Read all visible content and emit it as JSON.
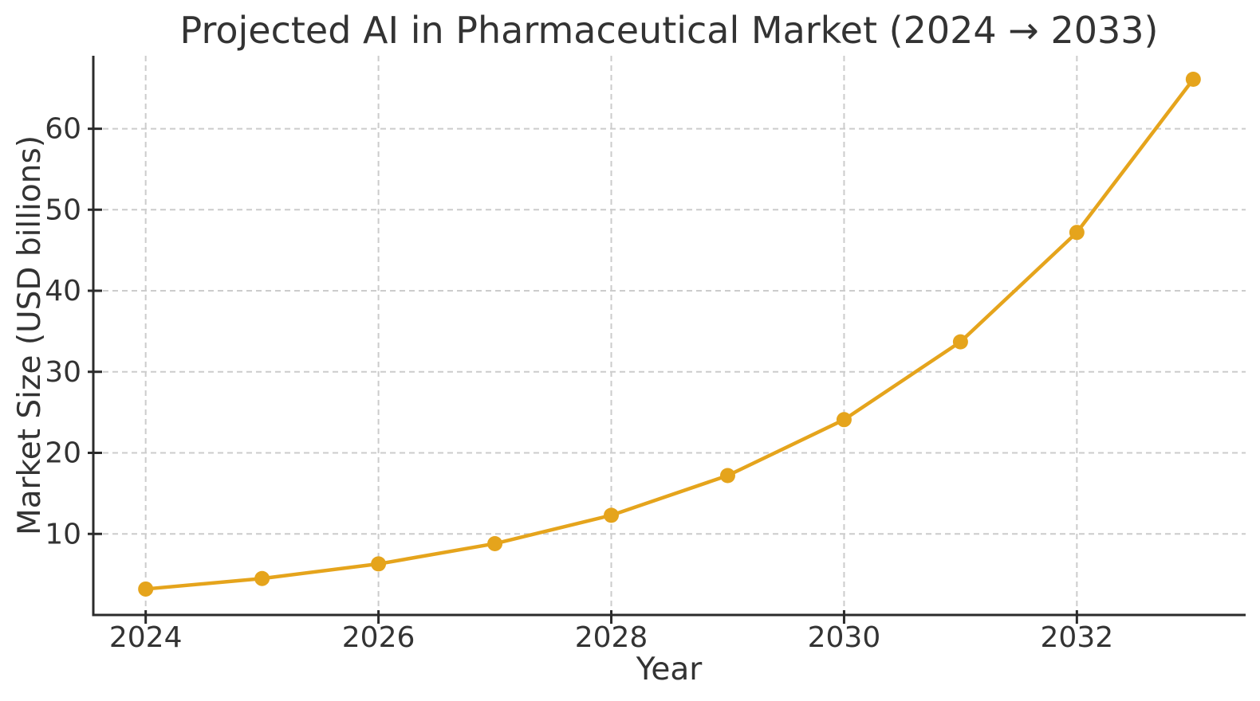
{
  "chart_data": {
    "type": "line",
    "title": "Projected AI in Pharmaceutical Market (2024 → 2033)",
    "xlabel": "Year",
    "ylabel": "Market Size (USD billions)",
    "x": [
      2024,
      2025,
      2026,
      2027,
      2028,
      2029,
      2030,
      2031,
      2032,
      2033
    ],
    "values": [
      3.2,
      4.5,
      6.3,
      8.8,
      12.3,
      17.2,
      24.1,
      33.7,
      47.2,
      66.1
    ],
    "xticks": [
      2024,
      2026,
      2028,
      2030,
      2032
    ],
    "yticks": [
      10,
      20,
      30,
      40,
      50,
      60
    ],
    "xlim": [
      2023.55,
      2033.45
    ],
    "ylim": [
      0,
      69
    ],
    "grid": true,
    "grid_style": "dashed",
    "legend": false,
    "marker": "circle",
    "colors": {
      "line": "#E5A41C",
      "marker": "#E5A41C",
      "grid": "#CCCCCC",
      "spine": "#2B2B2B",
      "text": "#333333",
      "background": "#FFFFFF"
    }
  }
}
